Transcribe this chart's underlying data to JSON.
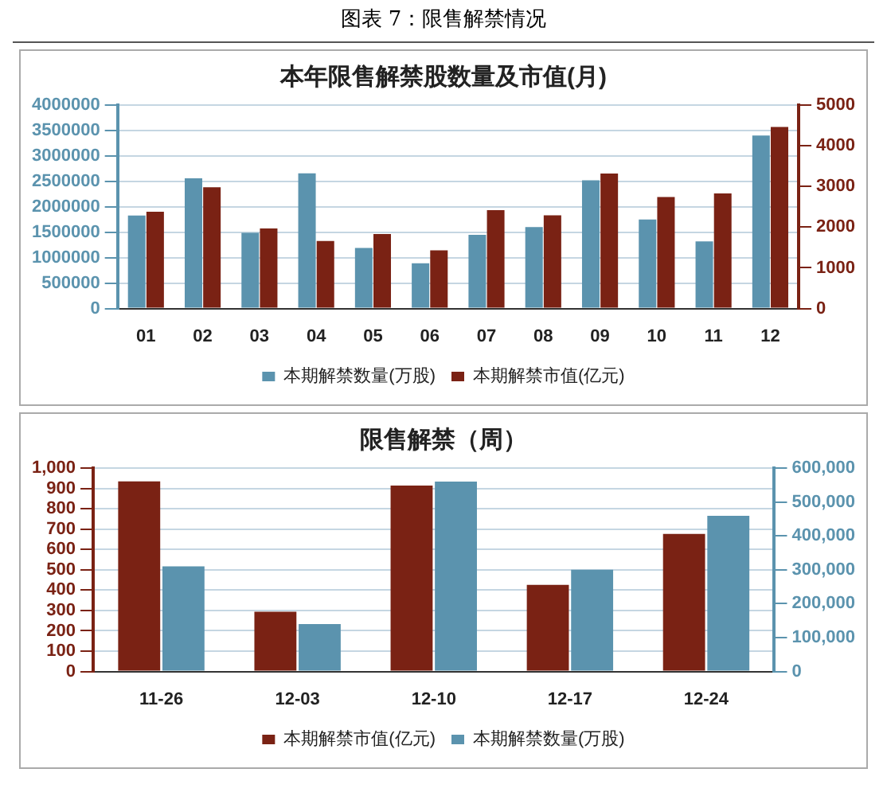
{
  "chart_data": [
    {
      "type": "bar",
      "title": "本年限售解禁股数量及市值(月)",
      "annotations": [
        "图表 7：限售解禁情况"
      ],
      "categories": [
        "01",
        "02",
        "03",
        "04",
        "05",
        "06",
        "07",
        "08",
        "09",
        "10",
        "11",
        "12"
      ],
      "series": [
        {
          "name": "本期解禁数量(万股)",
          "color": "#5b93ae",
          "axis": "y",
          "values": [
            1830000,
            2560000,
            1490000,
            2660000,
            1190000,
            890000,
            1450000,
            1600000,
            2520000,
            1750000,
            1320000,
            3400000
          ]
        },
        {
          "name": "本期解禁市值(亿元)",
          "color": "#7a2214",
          "axis": "y2",
          "values": [
            2380,
            2980,
            1970,
            1660,
            1830,
            1430,
            2420,
            2290,
            3320,
            2740,
            2830,
            4460
          ]
        }
      ],
      "ylim": [
        0,
        4000000
      ],
      "yticks": [
        0,
        500000,
        1000000,
        1500000,
        2000000,
        2500000,
        3000000,
        3500000,
        4000000
      ],
      "y2lim": [
        0,
        5000
      ],
      "y2ticks": [
        0,
        1000,
        2000,
        3000,
        4000,
        5000
      ],
      "grid": "y",
      "legend": "bottom"
    },
    {
      "type": "bar",
      "title": "限售解禁（周）",
      "categories": [
        "11-26",
        "12-03",
        "12-10",
        "12-17",
        "12-24"
      ],
      "series": [
        {
          "name": "本期解禁市值(亿元)",
          "color": "#7a2214",
          "axis": "y",
          "values": [
            934,
            294,
            914,
            426,
            676
          ]
        },
        {
          "name": "本期解禁数量(万股)",
          "color": "#5b93ae",
          "axis": "y2",
          "values": [
            310000,
            140000,
            560000,
            300000,
            459000
          ]
        }
      ],
      "ylim": [
        0,
        1000
      ],
      "yticks": [
        0,
        100,
        200,
        300,
        400,
        500,
        600,
        700,
        800,
        900,
        {
          "value": 1000,
          "label": "1,000"
        }
      ],
      "y2lim": [
        0,
        600000
      ],
      "y2ticks": [
        0,
        {
          "value": 100000,
          "label": "100,000"
        },
        {
          "value": 200000,
          "label": "200,000"
        },
        {
          "value": 300000,
          "label": "300,000"
        },
        {
          "value": 400000,
          "label": "400,000"
        },
        {
          "value": 500000,
          "label": "500,000"
        },
        {
          "value": 600000,
          "label": "600,000"
        }
      ],
      "grid": "y",
      "legend": "bottom"
    }
  ]
}
